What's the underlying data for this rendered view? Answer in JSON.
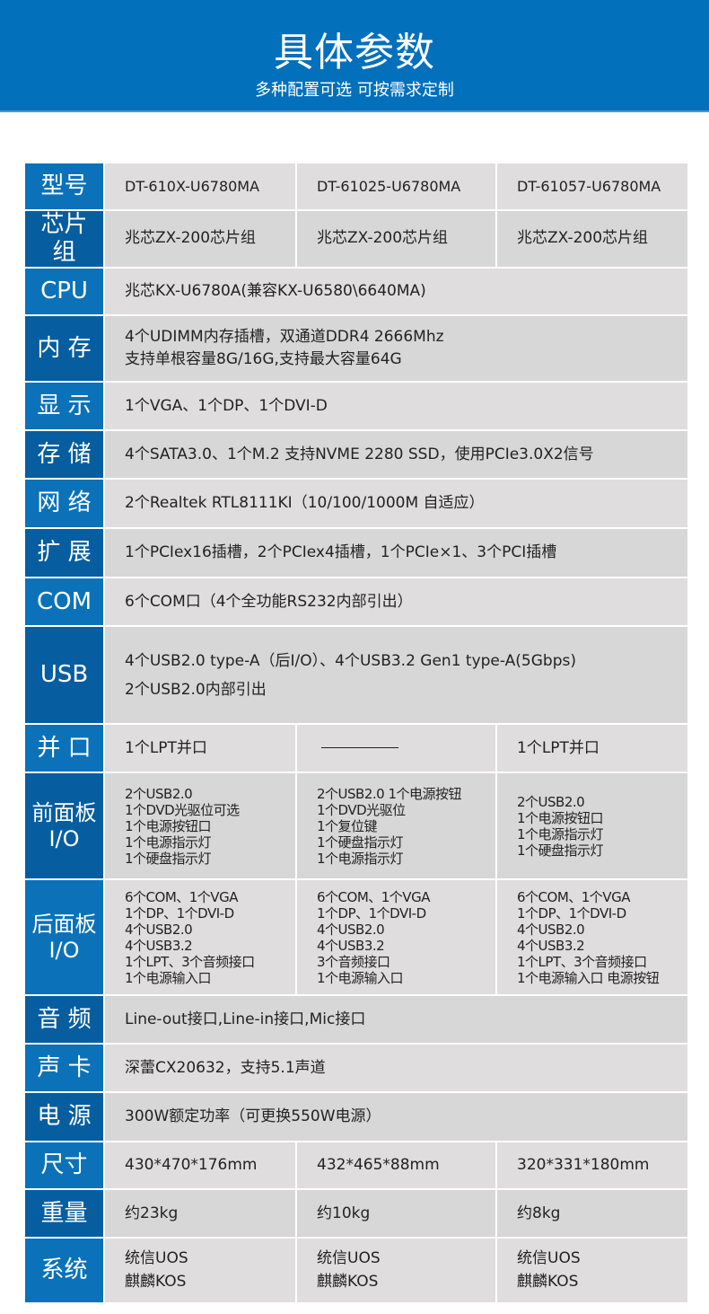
{
  "header": {
    "title": "具体参数",
    "subtitle": "多种配置可选 可按需求定制"
  },
  "colors": {
    "banner": "#0370bc",
    "label_odd": "#0b72b9",
    "label_even": "#065ea0",
    "cell_odd": "#dfdddd",
    "cell_even": "#d7d7d7"
  },
  "rows": [
    {
      "label": "型号",
      "cells": [
        "DT-610X-U6780MA",
        "DT-61025-U6780MA",
        "DT-61057-U6780MA"
      ]
    },
    {
      "label": "芯片组",
      "cells": [
        "兆芯ZX-200芯片组",
        "兆芯ZX-200芯片组",
        "兆芯ZX-200芯片组"
      ]
    },
    {
      "label": "CPU",
      "value": "兆芯KX-U6780A(兼容KX-U6580\\6640MA)"
    },
    {
      "label": "内 存",
      "lines": [
        "4个UDIMM内存插槽，双通道DDR4 2666Mhz",
        "支持单根容量8G/16G,支持最大容量64G"
      ]
    },
    {
      "label": "显 示",
      "value": "1个VGA、1个DP、1个DVI-D"
    },
    {
      "label": "存 储",
      "value": "4个SATA3.0、1个M.2 支持NVME 2280 SSD，使用PCIe3.0X2信号"
    },
    {
      "label": "网 络",
      "value": "2个Realtek RTL8111KI（10/100/1000M 自适应）"
    },
    {
      "label": "扩 展",
      "value": "1个PCIex16插槽，2个PCIex4插槽，1个PCIe×1、3个PCI插槽"
    },
    {
      "label": "COM",
      "value": "6个COM口（4个全功能RS232内部引出）"
    },
    {
      "label": "USB",
      "lines": [
        "4个USB2.0 type-A（后I/O）、4个USB3.2 Gen1 type-A(5Gbps)",
        "2个USB2.0内部引出"
      ]
    },
    {
      "label": "并 口",
      "cells": [
        "1个LPT并口",
        "—",
        "1个LPT并口"
      ]
    },
    {
      "label": "前面板I/O",
      "cells": [
        [
          "2个USB2.0",
          "1个DVD光驱位可选",
          "1个电源按钮口",
          "1个电源指示灯",
          "1个硬盘指示灯"
        ],
        [
          "2个USB2.0 1个电源按钮",
          "1个DVD光驱位",
          "1个复位键",
          "1个硬盘指示灯",
          "1个电源指示灯"
        ],
        [
          "2个USB2.0",
          "1个电源按钮口",
          "1个电源指示灯",
          "1个硬盘指示灯"
        ]
      ]
    },
    {
      "label": "后面板I/O",
      "cells": [
        [
          "6个COM、1个VGA",
          "1个DP、1个DVI-D",
          "4个USB2.0",
          "4个USB3.2",
          "1个LPT、3个音频接口",
          "1个电源输入口"
        ],
        [
          "6个COM、1个VGA",
          "1个DP、1个DVI-D",
          "4个USB2.0",
          "4个USB3.2",
          "3个音频接口",
          "1个电源输入口"
        ],
        [
          "6个COM、1个VGA",
          "1个DP、1个DVI-D",
          "4个USB2.0",
          "4个USB3.2",
          "1个LPT、3个音频接口",
          "1个电源输入口 电源按钮"
        ]
      ]
    },
    {
      "label": "音 频",
      "value": "Line-out接口,Line-in接口,Mic接口"
    },
    {
      "label": "声 卡",
      "value": "深蕾CX20632，支持5.1声道"
    },
    {
      "label": "电 源",
      "value": "300W额定功率（可更换550W电源）"
    },
    {
      "label": "尺寸",
      "cells": [
        "430*470*176mm",
        "432*465*88mm",
        "320*331*180mm"
      ]
    },
    {
      "label": "重量",
      "cells": [
        "约23kg",
        "约10kg",
        "约8kg"
      ]
    },
    {
      "label": "系统",
      "cells": [
        [
          "统信UOS",
          "麒麟KOS"
        ],
        [
          "统信UOS",
          "麒麟KOS"
        ],
        [
          "统信UOS",
          "麒麟KOS"
        ]
      ]
    }
  ]
}
